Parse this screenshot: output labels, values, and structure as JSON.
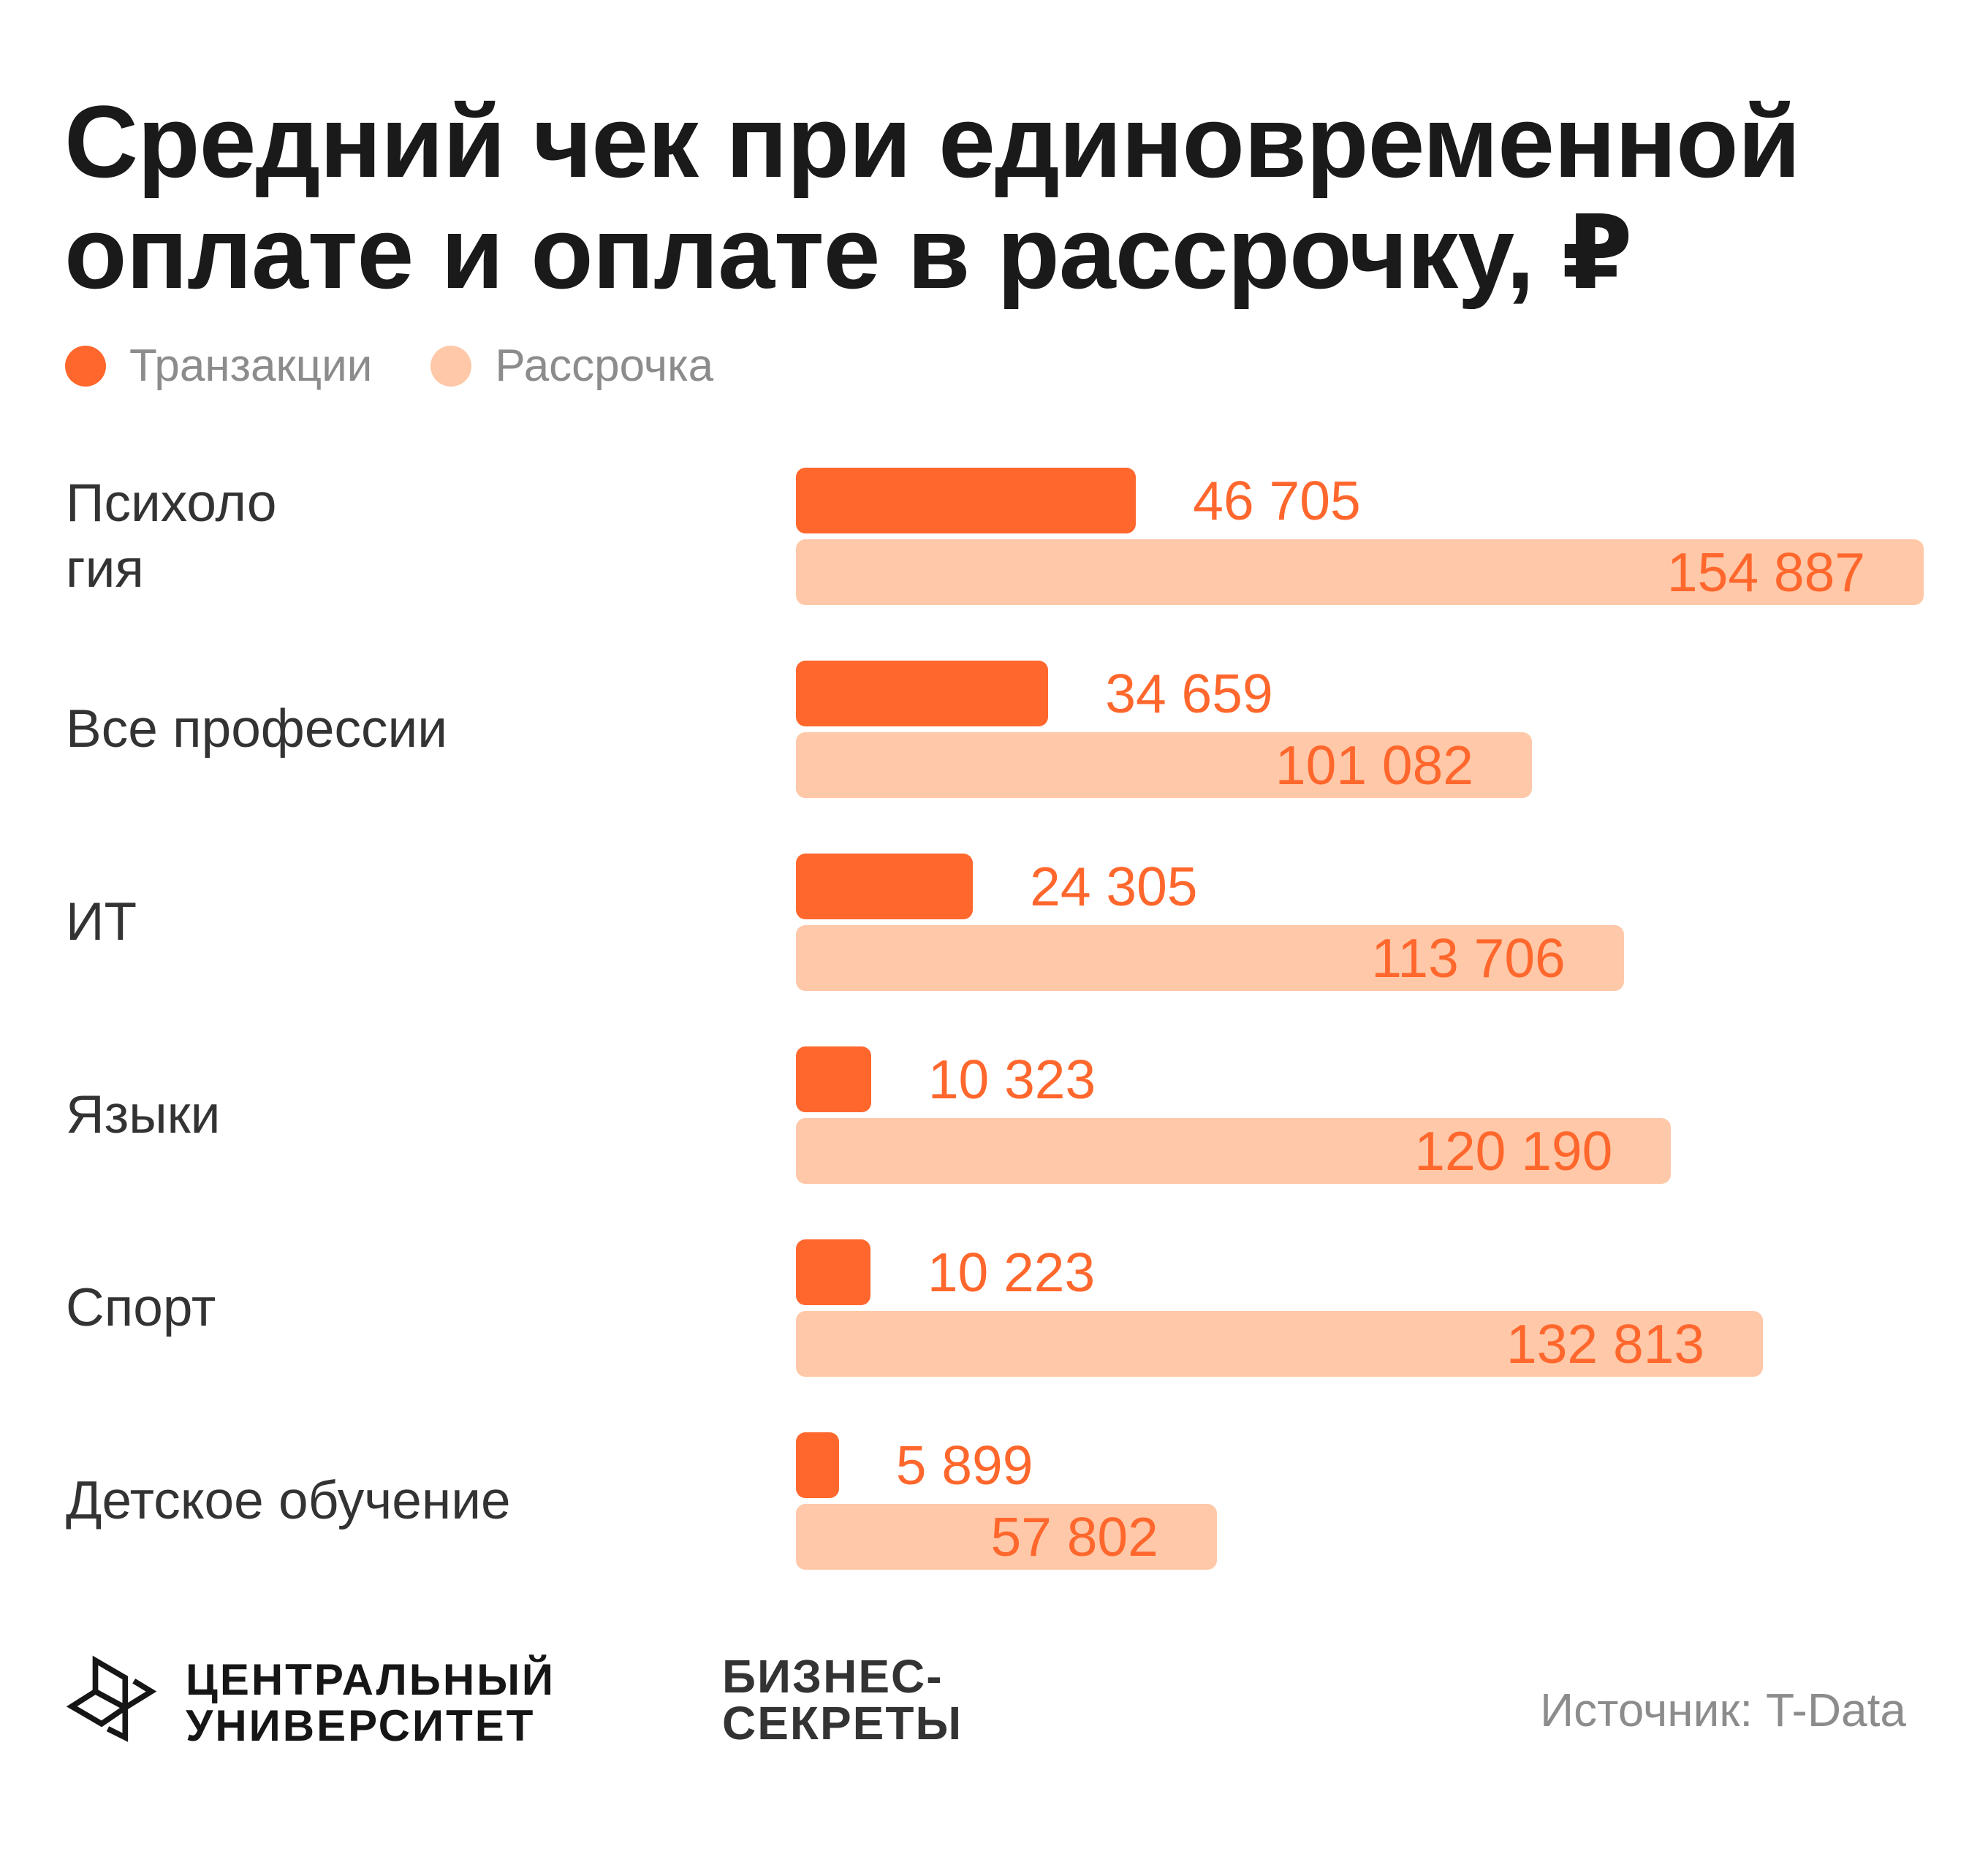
{
  "title": {
    "line1": "Средний чек при единовременной",
    "line2": "оплате и оплате в рассрочку, ₽"
  },
  "legend": [
    {
      "label": "Транзакции",
      "color": "#ff672d"
    },
    {
      "label": "Рассрочка",
      "color": "#ffc8a8"
    }
  ],
  "chart_data": {
    "type": "bar",
    "orientation": "horizontal",
    "title": "Средний чек при единовременной оплате и оплате в рассрочку, ₽",
    "xlabel": "",
    "ylabel": "",
    "unit": "₽",
    "grid": false,
    "legend_position": "top-left",
    "categories": [
      "Психология",
      "Все профессии",
      "ИТ",
      "Языки",
      "Спорт",
      "Детское обучение"
    ],
    "category_display_lines": [
      [
        "Психоло",
        "гия"
      ],
      [
        "Все профессии"
      ],
      [
        "ИТ"
      ],
      [
        "Языки"
      ],
      [
        "Спорт"
      ],
      [
        "Детское обучение"
      ]
    ],
    "series": [
      {
        "name": "Транзакции",
        "color": "#ff672d",
        "values": [
          46705,
          34659,
          24305,
          10323,
          10223,
          5899
        ],
        "labels": [
          "46 705",
          "34 659",
          "24 305",
          "10 323",
          "10 223",
          "5 899"
        ]
      },
      {
        "name": "Рассрочка",
        "color": "#ffc8a8",
        "values": [
          154887,
          101082,
          113706,
          120190,
          132813,
          57802
        ],
        "labels": [
          "154 887",
          "101 082",
          "113 706",
          "120 190",
          "132 813",
          "57 802"
        ]
      }
    ],
    "xlim": [
      0,
      154887
    ]
  },
  "footer": {
    "logo_cu": {
      "line1": "ЦЕНТРАЛЬНЫЙ",
      "line2": "УНИВЕРСИТЕТ",
      "icon": "central-university-logo-icon"
    },
    "logo_bs": {
      "line1": "БИЗНЕС-",
      "line2": "СЕКРЕТЫ"
    },
    "source": "Источник: T-Data"
  }
}
